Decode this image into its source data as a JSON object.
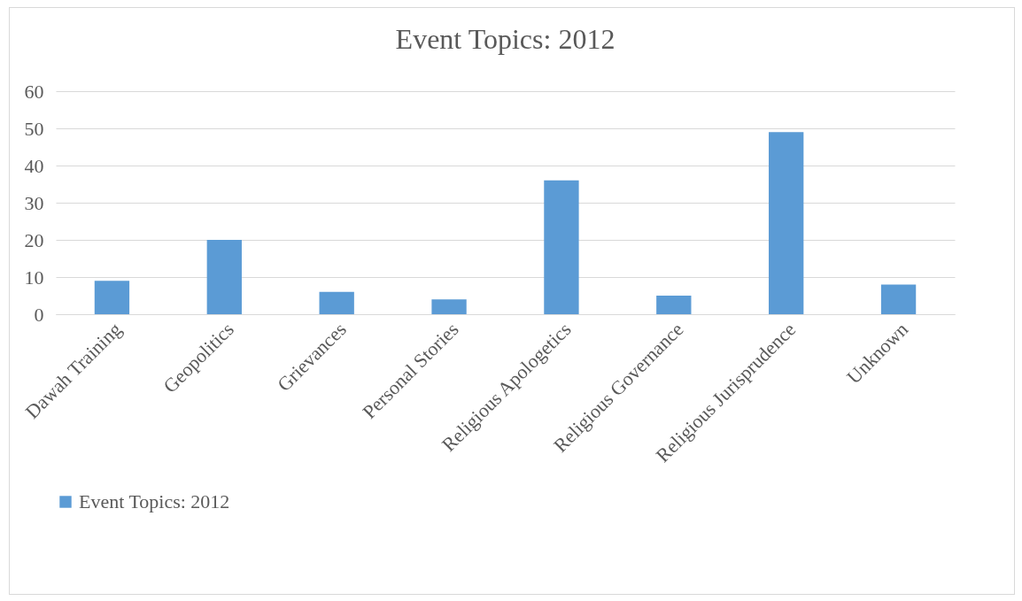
{
  "chart_data": {
    "type": "bar",
    "title": "Event Topics: 2012",
    "categories": [
      "Dawah Training",
      "Geopolitics",
      "Grievances",
      "Personal Stories",
      "Religious Apologetics",
      "Religious Governance",
      "Religious Jurisprudence",
      "Unknown"
    ],
    "series": [
      {
        "name": "Event Topics: 2012",
        "color": "#5b9bd5",
        "values": [
          9,
          20,
          6,
          4,
          36,
          5,
          49,
          8
        ]
      }
    ],
    "ylim": [
      0,
      60
    ],
    "yticks": [
      0,
      10,
      20,
      30,
      40,
      50,
      60
    ],
    "grid": "y",
    "legend": "bottom"
  }
}
